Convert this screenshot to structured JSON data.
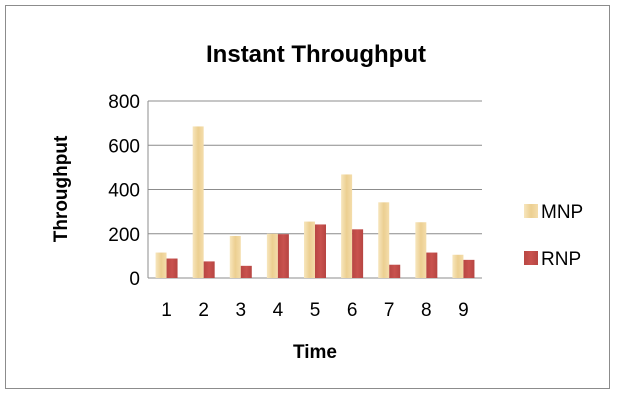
{
  "chart_data": {
    "type": "bar",
    "title": "Instant Throughput",
    "xlabel": "Time",
    "ylabel": "Throughput",
    "categories": [
      "1",
      "2",
      "3",
      "4",
      "5",
      "6",
      "7",
      "8",
      "9"
    ],
    "series": [
      {
        "name": "MNP",
        "color": "#f0d9a0",
        "values": [
          115,
          685,
          190,
          200,
          255,
          468,
          342,
          252,
          105
        ]
      },
      {
        "name": "RNP",
        "color": "#c0504d",
        "values": [
          88,
          75,
          55,
          198,
          242,
          220,
          60,
          115,
          82
        ]
      }
    ],
    "ylim": [
      0,
      800
    ],
    "yticks": [
      0,
      200,
      400,
      600,
      800
    ],
    "grid": true,
    "legend": "right"
  }
}
